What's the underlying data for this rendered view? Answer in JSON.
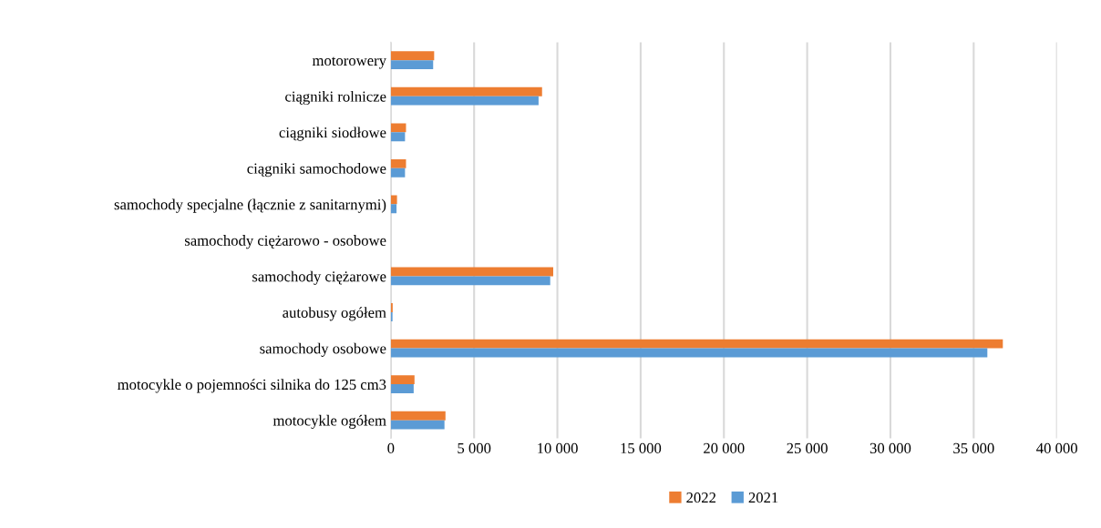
{
  "chart_data": {
    "type": "bar",
    "orientation": "horizontal",
    "categories": [
      "motorowery",
      "ciągniki rolnicze",
      "ciągniki siodłowe",
      "ciągniki samochodowe",
      "samochody specjalne (łącznie z sanitarnymi)",
      "samochody ciężarowo - osobowe",
      "samochody ciężarowe",
      "autobusy ogółem",
      "samochody osobowe",
      "motocykle o pojemności silnika do 125 cm3",
      "motocykle ogółem"
    ],
    "series": [
      {
        "name": "2022",
        "color": "#ed7d31",
        "values": [
          2600,
          9080,
          910,
          910,
          370,
          0,
          9750,
          110,
          36750,
          1420,
          3280
        ]
      },
      {
        "name": "2021",
        "color": "#5b9bd5",
        "values": [
          2540,
          8870,
          850,
          850,
          340,
          0,
          9570,
          100,
          35820,
          1370,
          3220
        ]
      }
    ],
    "xlim": [
      0,
      40000
    ],
    "xticks": [
      0,
      {
        "value": 5000,
        "label": "5 000"
      },
      {
        "value": 10000,
        "label": "10 000"
      },
      {
        "value": 15000,
        "label": "15 000"
      },
      {
        "value": 20000,
        "label": "20 000"
      },
      {
        "value": 25000,
        "label": "25 000"
      },
      {
        "value": 30000,
        "label": "30 000"
      },
      {
        "value": 35000,
        "label": "35 000"
      },
      {
        "value": 40000,
        "label": "40 000"
      }
    ],
    "grid": "x",
    "legend": "bottom"
  }
}
